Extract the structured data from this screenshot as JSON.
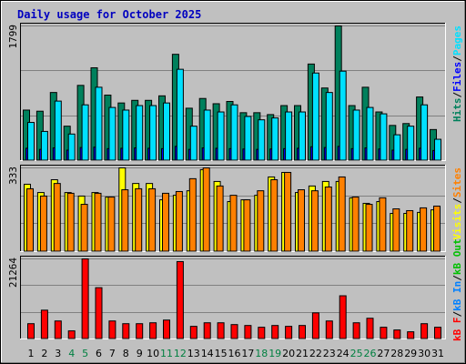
{
  "chart_data": {
    "type": "webalizer-daily",
    "title": "Daily usage for October 2025",
    "categories": [
      "1",
      "2",
      "3",
      "4",
      "5",
      "6",
      "7",
      "8",
      "9",
      "10",
      "11",
      "12",
      "13",
      "14",
      "15",
      "16",
      "17",
      "18",
      "19",
      "20",
      "21",
      "22",
      "23",
      "24",
      "25",
      "26",
      "27",
      "28",
      "29",
      "30",
      "31"
    ],
    "category_colors": [
      "#000000",
      "#000000",
      "#000000",
      "#008040",
      "#008040",
      "#000000",
      "#000000",
      "#000000",
      "#000000",
      "#000000",
      "#008040",
      "#008040",
      "#000000",
      "#000000",
      "#000000",
      "#000000",
      "#000000",
      "#008040",
      "#008040",
      "#000000",
      "#000000",
      "#000000",
      "#000000",
      "#000000",
      "#008040",
      "#008040",
      "#000000",
      "#000000",
      "#000000",
      "#000000",
      "#000000"
    ],
    "panels": [
      {
        "type": "bar",
        "ylim": [
          0,
          1799
        ],
        "yticks": [
          1799
        ],
        "grid": [
          599.67,
          1199.33
        ],
        "series": [
          {
            "name": "Hits",
            "color": "#00805c",
            "values": [
              675,
              660,
              910,
              460,
              1005,
              1240,
              875,
              770,
              805,
              805,
              865,
              1420,
              700,
              830,
              760,
              790,
              640,
              640,
              615,
              735,
              735,
              1290,
              970,
              1799,
              735,
              980,
              650,
              470,
              495,
              850,
              415
            ]
          },
          {
            "name": "Files",
            "color": "#0000ff",
            "values": [
              165,
              150,
              170,
              140,
              175,
              180,
              160,
              165,
              170,
              165,
              160,
              190,
              150,
              170,
              165,
              160,
              155,
              150,
              155,
              160,
              165,
              185,
              175,
              190,
              160,
              170,
              155,
              140,
              150,
              165,
              135
            ]
          },
          {
            "name": "Pages",
            "color": "#00e0ff",
            "values": [
              510,
              390,
              795,
              355,
              745,
              980,
              710,
              675,
              735,
              735,
              770,
              1220,
              460,
              675,
              650,
              745,
              590,
              545,
              570,
              650,
              650,
              1170,
              910,
              1195,
              675,
              710,
              625,
              345,
              460,
              745,
              285
            ]
          }
        ],
        "separator": "/"
      },
      {
        "type": "bar",
        "ylim": [
          0,
          333
        ],
        "yticks": [
          333
        ],
        "grid": [
          111,
          222
        ],
        "series": [
          {
            "name": "Visits",
            "color": "#ffff00",
            "values": [
              268,
              235,
              286,
              235,
              221,
              235,
              217,
              333,
              271,
              271,
              206,
              224,
              242,
              326,
              279,
              199,
              206,
              224,
              297,
              315,
              235,
              261,
              279,
              279,
              214,
              192,
              199,
              152,
              152,
              156,
              166
            ]
          },
          {
            "name": "Sites",
            "color": "#ff8000",
            "values": [
              250,
              221,
              271,
              232,
              188,
              232,
              217,
              246,
              250,
              250,
              232,
              239,
              290,
              333,
              261,
              224,
              206,
              242,
              286,
              315,
              246,
              242,
              257,
              297,
              217,
              188,
              214,
              170,
              163,
              174,
              181
            ]
          }
        ],
        "separator": "/"
      },
      {
        "type": "bar",
        "ylim": [
          0,
          21264
        ],
        "yticks": [
          21264
        ],
        "grid": [
          7088,
          14176
        ],
        "series": [
          {
            "name": "kB F",
            "color": "#ff0000",
            "values": [
              4060,
              7650,
              4780,
              2150,
              21264,
              13620,
              4780,
              4060,
              4060,
              4300,
              5020,
              20550,
              3350,
              4300,
              4300,
              3820,
              3580,
              3110,
              3580,
              3350,
              3580,
              6930,
              4780,
              11470,
              4300,
              5500,
              3110,
              2390,
              1910,
              4060,
              3110
            ]
          }
        ],
        "extra_labels": [
          {
            "name": "kB In",
            "color": "#0080ff"
          },
          {
            "name": "kB Out",
            "color": "#00c000"
          }
        ],
        "separator": "/"
      }
    ]
  }
}
